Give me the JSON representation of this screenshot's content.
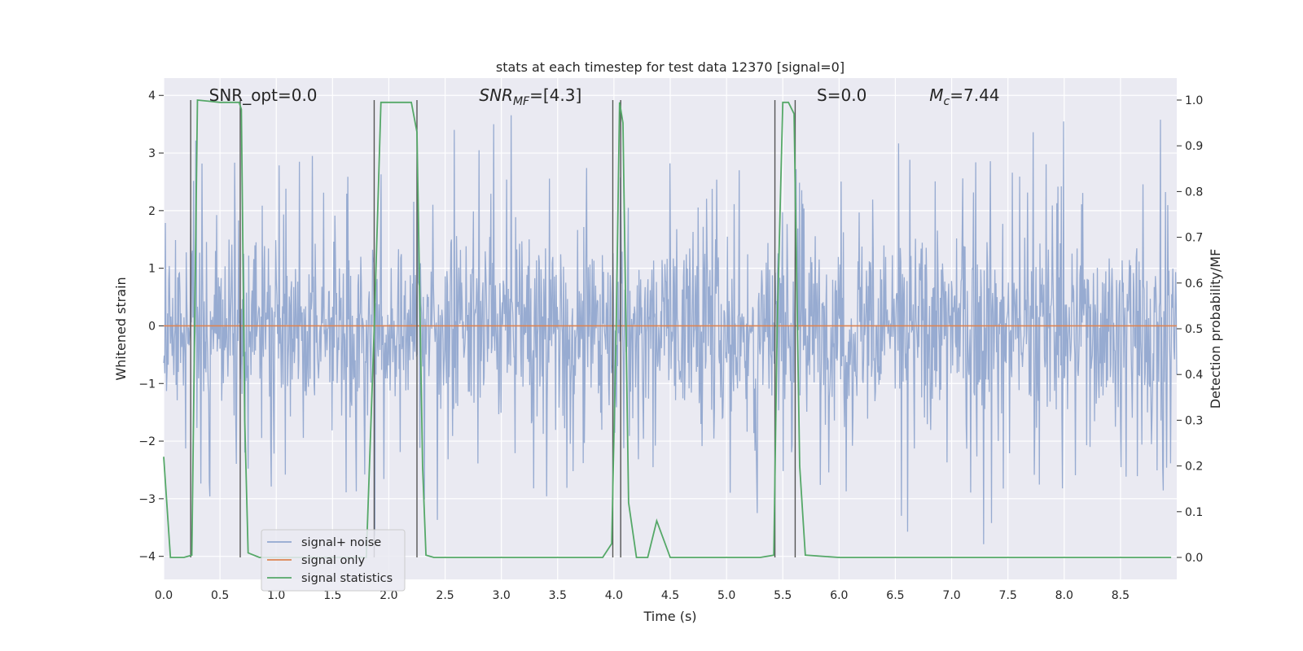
{
  "chart_data": {
    "type": "line",
    "title": "stats at each timestep for test data 12370 [signal=0]",
    "xlabel": "Time (s)",
    "ylabel": "Whitened strain",
    "ylabel_right": "Detection probability/MF",
    "xlim": [
      0.0,
      9.0
    ],
    "ylim": [
      -4.4,
      4.3
    ],
    "ylim_right": [
      -0.048,
      1.048
    ],
    "x_ticks": [
      0.0,
      0.5,
      1.0,
      1.5,
      2.0,
      2.5,
      3.0,
      3.5,
      4.0,
      4.5,
      5.0,
      5.5,
      6.0,
      6.5,
      7.0,
      7.5,
      8.0,
      8.5
    ],
    "x_tick_labels": [
      "0.0",
      "0.5",
      "1.0",
      "1.5",
      "2.0",
      "2.5",
      "3.0",
      "3.5",
      "4.0",
      "4.5",
      "5.0",
      "5.5",
      "6.0",
      "6.5",
      "7.0",
      "7.5",
      "8.0",
      "8.5"
    ],
    "y_ticks": [
      -4,
      -3,
      -2,
      -1,
      0,
      1,
      2,
      3,
      4
    ],
    "y_tick_labels": [
      "−4",
      "−3",
      "−2",
      "−1",
      "0",
      "1",
      "2",
      "3",
      "4"
    ],
    "y_right_ticks": [
      0.0,
      0.1,
      0.2,
      0.3,
      0.4,
      0.5,
      0.6,
      0.7,
      0.8,
      0.9,
      1.0
    ],
    "y_right_tick_labels": [
      "0.0",
      "0.1",
      "0.2",
      "0.3",
      "0.4",
      "0.5",
      "0.6",
      "0.7",
      "0.8",
      "0.9",
      "1.0"
    ],
    "grid": true,
    "annotations": [
      {
        "text": "SNR_opt=0.0",
        "x": 0.2,
        "y": 4.0
      },
      {
        "text": "SNR_MF=[4.3]",
        "x": 2.6,
        "y": 4.0
      },
      {
        "text": "S=0.0",
        "x": 5.6,
        "y": 4.0
      },
      {
        "text": "M_c=7.44",
        "x": 6.6,
        "y": 4.0
      }
    ],
    "series": [
      {
        "name": "signal+ noise",
        "color": "#92a8cf",
        "kind": "noise",
        "noise_seed": 12370,
        "samples": 1800,
        "typical_amplitude": 1.6,
        "peak_min": -4.0,
        "peak_max": 3.9
      },
      {
        "name": "signal only",
        "color": "#dd8452",
        "x": [
          0.0,
          9.0
        ],
        "y": [
          0.0,
          0.0
        ]
      },
      {
        "name": "signal statistics",
        "color": "#55a868",
        "axis": "right",
        "x": [
          0.0,
          0.06,
          0.18,
          0.25,
          0.3,
          0.5,
          0.67,
          0.69,
          0.72,
          0.75,
          0.85,
          1.8,
          1.87,
          1.93,
          2.2,
          2.25,
          2.3,
          2.33,
          2.4,
          3.9,
          3.98,
          4.02,
          4.05,
          4.08,
          4.13,
          4.2,
          4.3,
          4.38,
          4.5,
          5.3,
          5.42,
          5.45,
          5.5,
          5.55,
          5.6,
          5.65,
          5.7,
          6.0,
          8.95
        ],
        "y": [
          0.22,
          0.0,
          0.0,
          0.005,
          1.0,
          0.995,
          0.995,
          0.98,
          0.3,
          0.01,
          0.0,
          0.0,
          0.5,
          0.995,
          0.995,
          0.93,
          0.2,
          0.005,
          0.0,
          0.0,
          0.03,
          0.5,
          0.995,
          0.95,
          0.12,
          0.0,
          0.0,
          0.08,
          0.0,
          0.0,
          0.005,
          0.5,
          0.995,
          0.995,
          0.97,
          0.2,
          0.005,
          0.0,
          0.0
        ]
      }
    ],
    "vlines": [
      0.24,
      0.68,
      1.87,
      2.25,
      3.99,
      4.06,
      5.43,
      5.61
    ],
    "legend": {
      "position": "lower-left",
      "entries": [
        "signal+ noise",
        "signal only",
        "signal statistics"
      ]
    }
  }
}
